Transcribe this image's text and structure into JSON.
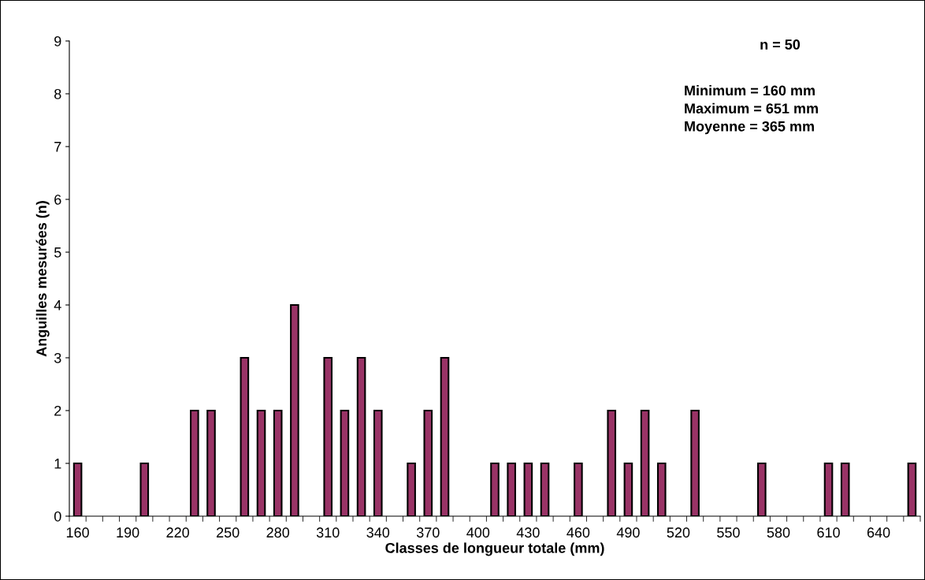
{
  "chart_data": {
    "type": "bar",
    "xlabel": "Classes de longueur totale (mm)",
    "ylabel": "Anguilles mesurées (n)",
    "categories": [
      "160",
      null,
      null,
      "190",
      null,
      null,
      "220",
      null,
      null,
      "250",
      null,
      null,
      "280",
      null,
      null,
      "310",
      null,
      null,
      "340",
      null,
      null,
      "370",
      null,
      null,
      "400",
      null,
      null,
      "430",
      null,
      null,
      "460",
      null,
      null,
      "490",
      null,
      null,
      "520",
      null,
      null,
      "550",
      null,
      null,
      "580",
      null,
      null,
      "610",
      null,
      null,
      "640",
      null,
      null
    ],
    "values": [
      1,
      0,
      0,
      0,
      1,
      0,
      0,
      2,
      2,
      0,
      3,
      2,
      2,
      4,
      0,
      3,
      2,
      3,
      2,
      0,
      1,
      2,
      3,
      0,
      0,
      1,
      1,
      1,
      1,
      0,
      1,
      0,
      2,
      1,
      2,
      1,
      0,
      2,
      0,
      0,
      0,
      1,
      0,
      0,
      0,
      1,
      1,
      0,
      0,
      0,
      1
    ],
    "color": "#993366",
    "ylim": [
      0,
      9
    ],
    "yticks": [
      0,
      1,
      2,
      3,
      4,
      5,
      6,
      7,
      8,
      9
    ],
    "grid": false,
    "legend": false,
    "annotations": [
      "n = 50",
      "Minimum = 160 mm\nMaximum = 651 mm\nMoyenne = 365 mm"
    ]
  }
}
